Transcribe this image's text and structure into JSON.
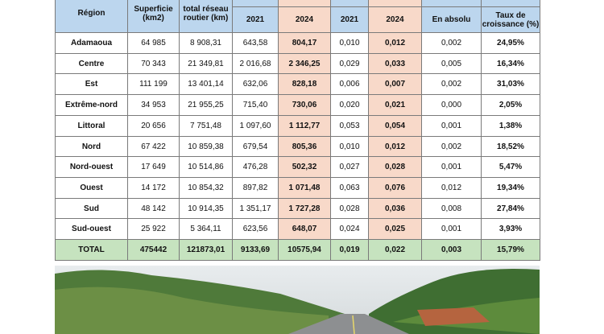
{
  "table": {
    "header": [
      "Région",
      "Superficie (km2)",
      "total réseau routier (km)",
      "2021",
      "2024",
      "2021",
      "2024",
      "En absolu",
      "Taux de croissance (%)"
    ],
    "rows": [
      [
        "Adamaoua",
        "64 985",
        "8 908,31",
        "643,58",
        "804,17",
        "0,010",
        "0,012",
        "0,002",
        "24,95%"
      ],
      [
        "Centre",
        "70 343",
        "21 349,81",
        "2 016,68",
        "2 346,25",
        "0,029",
        "0,033",
        "0,005",
        "16,34%"
      ],
      [
        "Est",
        "111 199",
        "13 401,14",
        "632,06",
        "828,18",
        "0,006",
        "0,007",
        "0,002",
        "31,03%"
      ],
      [
        "Extrême-nord",
        "34 953",
        "21 955,25",
        "715,40",
        "730,06",
        "0,020",
        "0,021",
        "0,000",
        "2,05%"
      ],
      [
        "Littoral",
        "20 656",
        "7 751,48",
        "1 097,60",
        "1 112,77",
        "0,053",
        "0,054",
        "0,001",
        "1,38%"
      ],
      [
        "Nord",
        "67 422",
        "10 859,38",
        "679,54",
        "805,36",
        "0,010",
        "0,012",
        "0,002",
        "18,52%"
      ],
      [
        "Nord-ouest",
        "17 649",
        "10 514,86",
        "476,28",
        "502,32",
        "0,027",
        "0,028",
        "0,001",
        "5,47%"
      ],
      [
        "Ouest",
        "14 172",
        "10 854,32",
        "897,82",
        "1 071,48",
        "0,063",
        "0,076",
        "0,012",
        "19,34%"
      ],
      [
        "Sud",
        "48 142",
        "10 914,35",
        "1 351,17",
        "1 727,28",
        "0,028",
        "0,036",
        "0,008",
        "27,84%"
      ],
      [
        "Sud-ouest",
        "25 922",
        "5 364,11",
        "623,56",
        "648,07",
        "0,024",
        "0,025",
        "0,001",
        "3,93%"
      ],
      [
        "TOTAL",
        "475442",
        "121873,01",
        "9133,69",
        "10575,94",
        "0,019",
        "0,022",
        "0,003",
        "15,79%"
      ]
    ]
  }
}
